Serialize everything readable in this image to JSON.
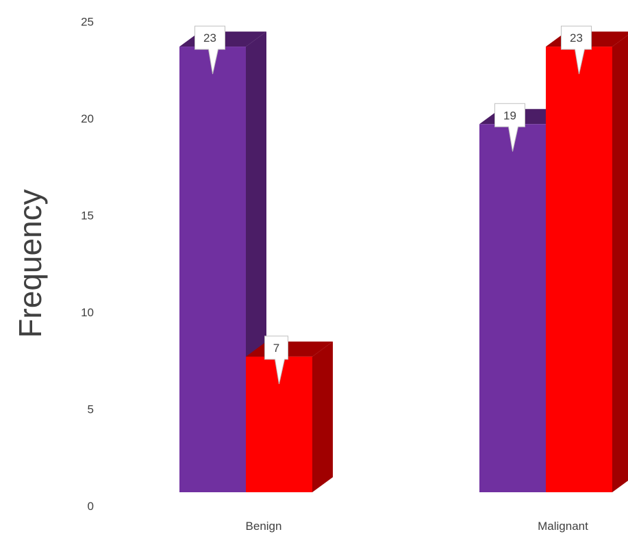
{
  "chart_data": {
    "type": "bar",
    "categories": [
      "Benign",
      "Malignant"
    ],
    "series": [
      {
        "color": "#7030A0",
        "side_color": "#4B1D66",
        "values": [
          23,
          19
        ]
      },
      {
        "color": "#FF0000",
        "side_color": "#A00000",
        "values": [
          7,
          23
        ]
      }
    ],
    "data_labels": [
      [
        "23",
        "19"
      ],
      [
        "7",
        "23"
      ]
    ],
    "ylabel": "Frequency",
    "xlabel": "",
    "title": "",
    "yticks": [
      0,
      5,
      10,
      15,
      20,
      25
    ],
    "ylim": [
      0,
      25
    ],
    "grid": false,
    "legend": "none",
    "style": "3d-column"
  }
}
